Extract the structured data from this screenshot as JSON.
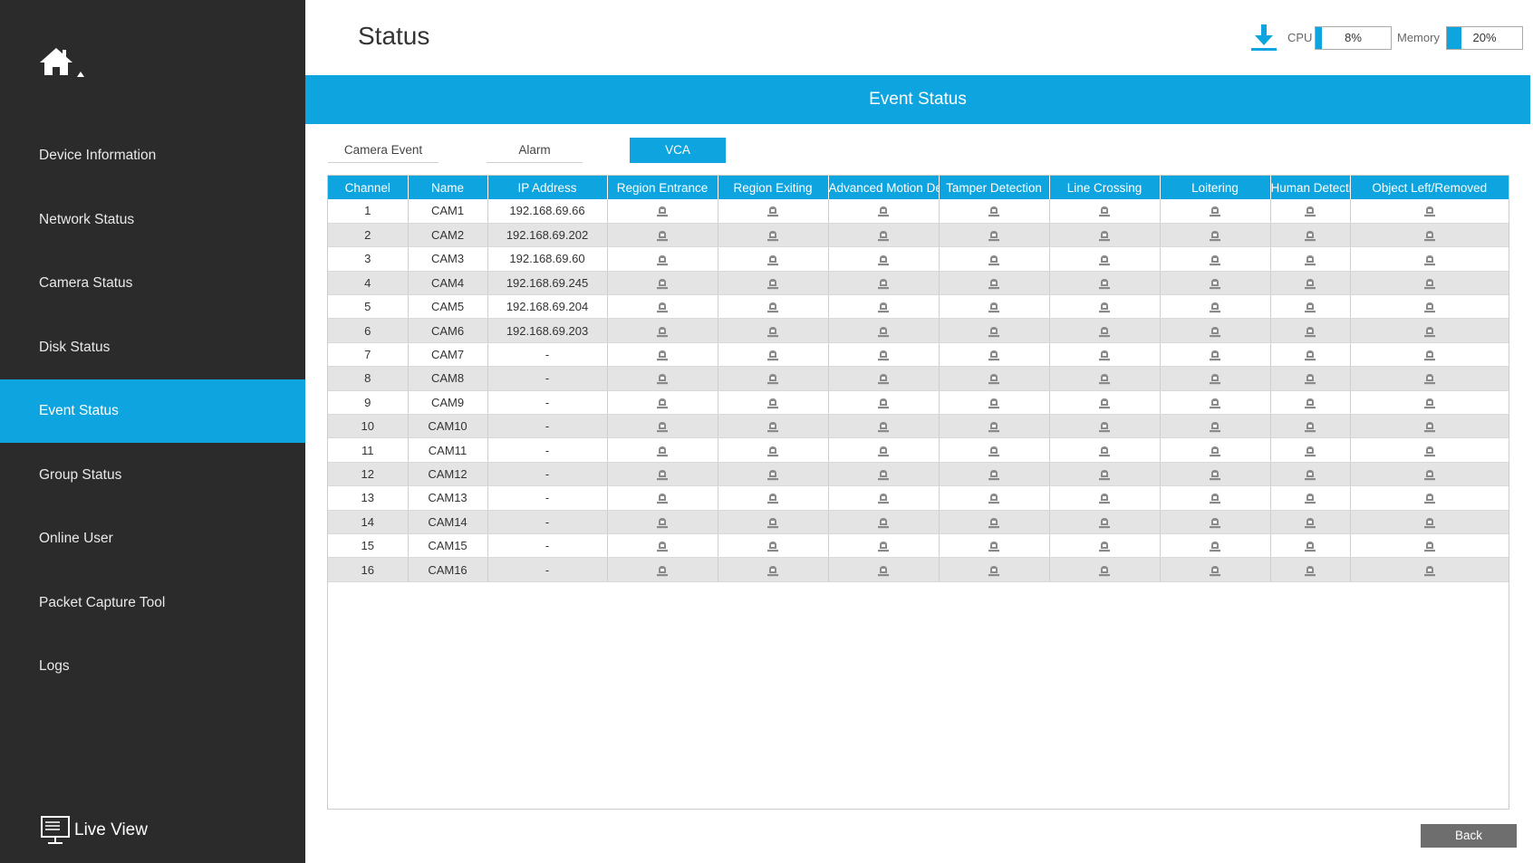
{
  "sidebar": {
    "items": [
      {
        "label": "Device Information",
        "active": false
      },
      {
        "label": "Network Status",
        "active": false
      },
      {
        "label": "Camera Status",
        "active": false
      },
      {
        "label": "Disk Status",
        "active": false
      },
      {
        "label": "Event Status",
        "active": true
      },
      {
        "label": "Group Status",
        "active": false
      },
      {
        "label": "Online User",
        "active": false
      },
      {
        "label": "Packet Capture Tool",
        "active": false
      },
      {
        "label": "Logs",
        "active": false
      }
    ],
    "live_view_label": "Live View"
  },
  "header": {
    "title": "Status",
    "cpu_label": "CPU",
    "cpu_value": "8%",
    "cpu_fraction": 0.08,
    "memory_label": "Memory",
    "memory_value": "20%",
    "memory_fraction": 0.2
  },
  "banner": {
    "title": "Event Status"
  },
  "tabs": [
    {
      "label": "Camera Event",
      "active": false
    },
    {
      "label": "Alarm",
      "active": false
    },
    {
      "label": "VCA",
      "active": true
    }
  ],
  "table": {
    "columns": [
      "Channel",
      "Name",
      "IP Address",
      "Region Entrance",
      "Region Exiting",
      "Advanced Motion Detection",
      "Tamper Detection",
      "Line Crossing",
      "Loitering",
      "Human Detection",
      "Object Left/Removed"
    ],
    "rows": [
      {
        "channel": "1",
        "name": "CAM1",
        "ip": "192.168.69.66"
      },
      {
        "channel": "2",
        "name": "CAM2",
        "ip": "192.168.69.202"
      },
      {
        "channel": "3",
        "name": "CAM3",
        "ip": "192.168.69.60"
      },
      {
        "channel": "4",
        "name": "CAM4",
        "ip": "192.168.69.245"
      },
      {
        "channel": "5",
        "name": "CAM5",
        "ip": "192.168.69.204"
      },
      {
        "channel": "6",
        "name": "CAM6",
        "ip": "192.168.69.203"
      },
      {
        "channel": "7",
        "name": "CAM7",
        "ip": "-"
      },
      {
        "channel": "8",
        "name": "CAM8",
        "ip": "-"
      },
      {
        "channel": "9",
        "name": "CAM9",
        "ip": "-"
      },
      {
        "channel": "10",
        "name": "CAM10",
        "ip": "-"
      },
      {
        "channel": "11",
        "name": "CAM11",
        "ip": "-"
      },
      {
        "channel": "12",
        "name": "CAM12",
        "ip": "-"
      },
      {
        "channel": "13",
        "name": "CAM13",
        "ip": "-"
      },
      {
        "channel": "14",
        "name": "CAM14",
        "ip": "-"
      },
      {
        "channel": "15",
        "name": "CAM15",
        "ip": "-"
      },
      {
        "channel": "16",
        "name": "CAM16",
        "ip": "-"
      }
    ],
    "event_icon": "alarm-light-icon",
    "event_icon_color": "#8a8a8a"
  },
  "footer": {
    "back_label": "Back"
  },
  "colors": {
    "accent": "#0ea4df",
    "sidebar_bg": "#2b2b2b",
    "row_alt": "#e4e4e4"
  }
}
